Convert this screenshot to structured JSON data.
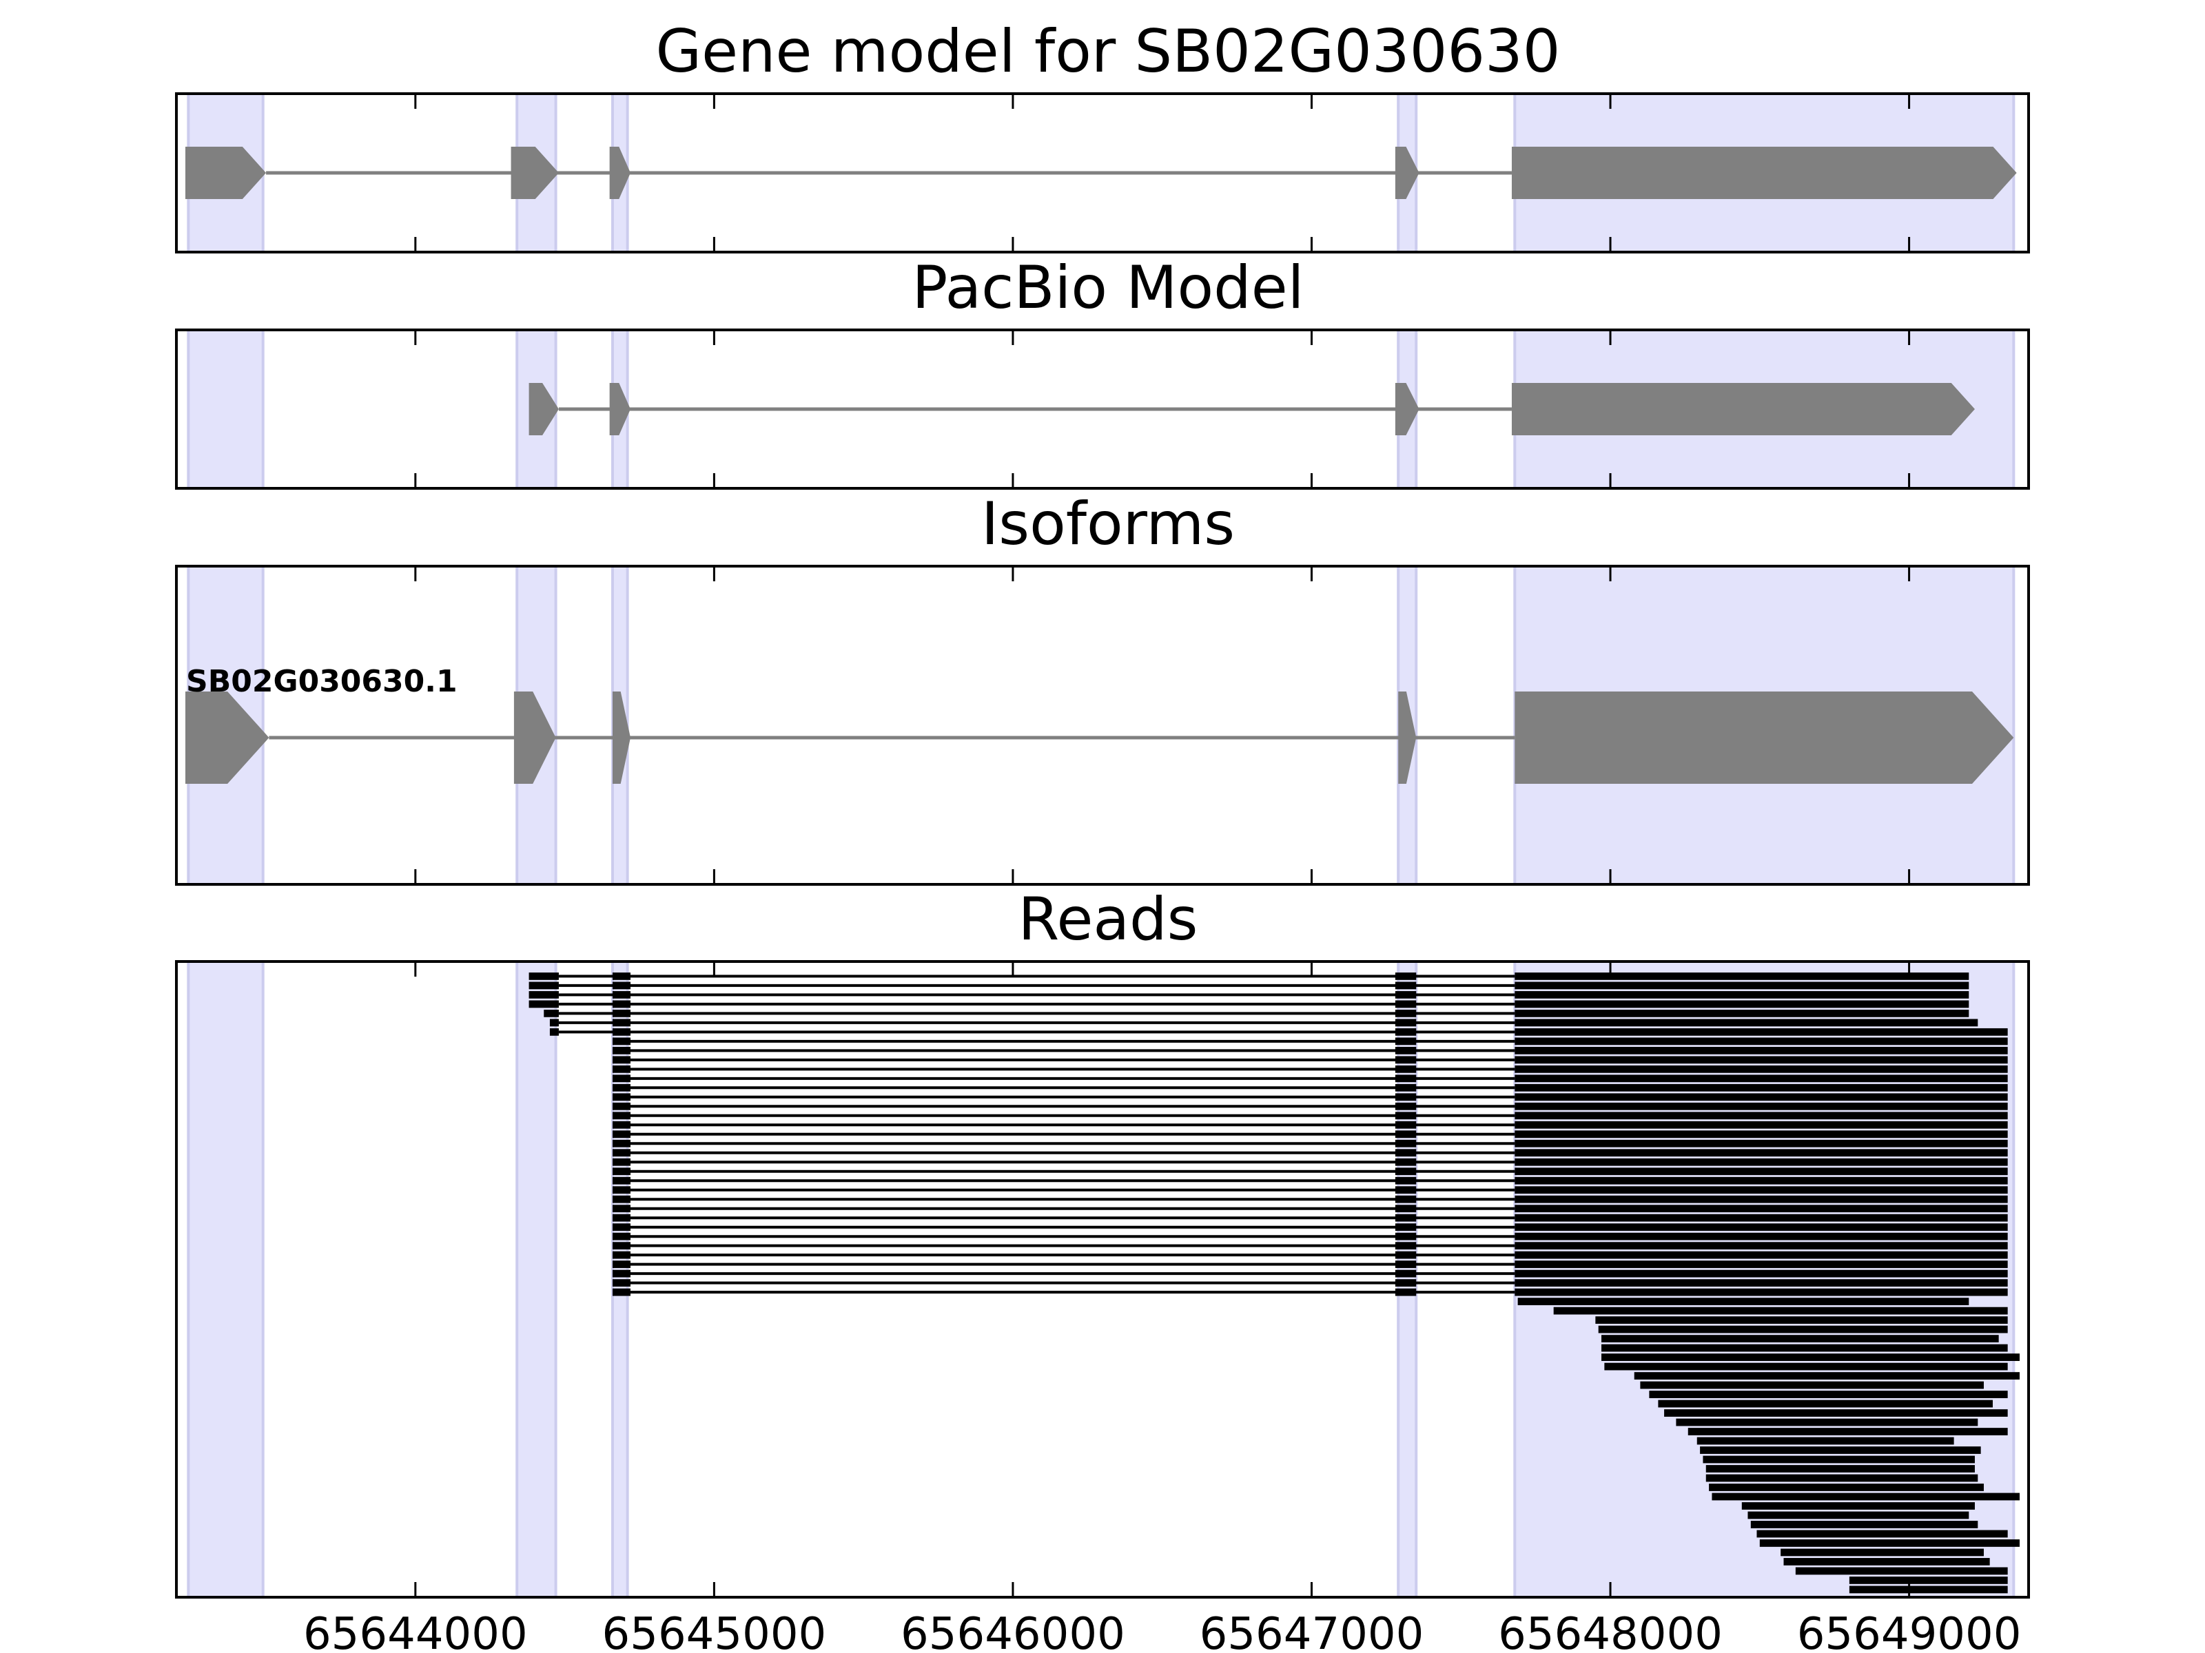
{
  "colors": {
    "exon_band": "#e3e3fb",
    "exon_band_edge": "#ccccee",
    "model_fill": "#808080",
    "intron_line": "#808080",
    "read": "#000000",
    "frame": "#000000"
  },
  "chart_data": {
    "type": "gene-structure",
    "xlim": [
      65643200,
      65649400
    ],
    "xticks": [
      65644000,
      65645000,
      65646000,
      65647000,
      65648000,
      65649000
    ],
    "xtick_labels": [
      "65644000",
      "65645000",
      "65646000",
      "65647000",
      "65648000",
      "65649000"
    ],
    "exon_bands": [
      [
        65643240,
        65643490
      ],
      [
        65644340,
        65644470
      ],
      [
        65644660,
        65644710
      ],
      [
        65647290,
        65647350
      ],
      [
        65647680,
        65649350
      ]
    ],
    "panels": [
      {
        "title": "Gene model for SB02G030630",
        "label": "",
        "exons": [
          [
            65643230,
            65643500
          ],
          [
            65644320,
            65644480
          ],
          [
            65644650,
            65644720
          ],
          [
            65647280,
            65647360
          ],
          [
            65647670,
            65649360
          ]
        ]
      },
      {
        "title": "PacBio Model",
        "label": "",
        "exons": [
          [
            65644380,
            65644480
          ],
          [
            65644650,
            65644720
          ],
          [
            65647280,
            65647360
          ],
          [
            65647670,
            65649220
          ]
        ]
      },
      {
        "title": "Isoforms",
        "label": "SB02G030630.1",
        "exons": [
          [
            65643230,
            65643510
          ],
          [
            65644330,
            65644470
          ],
          [
            65644660,
            65644720
          ],
          [
            65647290,
            65647350
          ],
          [
            65647680,
            65649350
          ]
        ]
      },
      {
        "title": "Reads",
        "label": "",
        "reads": [
          [
            [
              65644380,
              65644480
            ],
            [
              65644660,
              65644720
            ],
            [
              65647280,
              65647350
            ],
            [
              65647680,
              65649200
            ]
          ],
          [
            [
              65644380,
              65644480
            ],
            [
              65644660,
              65644720
            ],
            [
              65647280,
              65647350
            ],
            [
              65647680,
              65649200
            ]
          ],
          [
            [
              65644380,
              65644480
            ],
            [
              65644660,
              65644720
            ],
            [
              65647280,
              65647350
            ],
            [
              65647680,
              65649200
            ]
          ],
          [
            [
              65644380,
              65644480
            ],
            [
              65644660,
              65644720
            ],
            [
              65647280,
              65647350
            ],
            [
              65647680,
              65649200
            ]
          ],
          [
            [
              65644430,
              65644480
            ],
            [
              65644660,
              65644720
            ],
            [
              65647280,
              65647350
            ],
            [
              65647680,
              65649200
            ]
          ],
          [
            [
              65644450,
              65644480
            ],
            [
              65644660,
              65644720
            ],
            [
              65647280,
              65647350
            ],
            [
              65647680,
              65649230
            ]
          ],
          [
            [
              65644450,
              65644480
            ],
            [
              65644660,
              65644720
            ],
            [
              65647280,
              65647350
            ],
            [
              65647680,
              65649330
            ]
          ],
          [
            [
              65644660,
              65644720
            ],
            [
              65647280,
              65647350
            ],
            [
              65647680,
              65649330
            ]
          ],
          [
            [
              65644660,
              65644720
            ],
            [
              65647280,
              65647350
            ],
            [
              65647680,
              65649330
            ]
          ],
          [
            [
              65644660,
              65644720
            ],
            [
              65647280,
              65647350
            ],
            [
              65647680,
              65649330
            ]
          ],
          [
            [
              65644660,
              65644720
            ],
            [
              65647280,
              65647350
            ],
            [
              65647680,
              65649330
            ]
          ],
          [
            [
              65644660,
              65644720
            ],
            [
              65647280,
              65647350
            ],
            [
              65647680,
              65649330
            ]
          ],
          [
            [
              65644660,
              65644720
            ],
            [
              65647280,
              65647350
            ],
            [
              65647680,
              65649330
            ]
          ],
          [
            [
              65644660,
              65644720
            ],
            [
              65647280,
              65647350
            ],
            [
              65647680,
              65649330
            ]
          ],
          [
            [
              65644660,
              65644720
            ],
            [
              65647280,
              65647350
            ],
            [
              65647680,
              65649330
            ]
          ],
          [
            [
              65644660,
              65644720
            ],
            [
              65647280,
              65647350
            ],
            [
              65647680,
              65649330
            ]
          ],
          [
            [
              65644660,
              65644720
            ],
            [
              65647280,
              65647350
            ],
            [
              65647680,
              65649330
            ]
          ],
          [
            [
              65644660,
              65644720
            ],
            [
              65647280,
              65647350
            ],
            [
              65647680,
              65649330
            ]
          ],
          [
            [
              65644660,
              65644720
            ],
            [
              65647280,
              65647350
            ],
            [
              65647680,
              65649330
            ]
          ],
          [
            [
              65644660,
              65644720
            ],
            [
              65647280,
              65647350
            ],
            [
              65647680,
              65649330
            ]
          ],
          [
            [
              65644660,
              65644720
            ],
            [
              65647280,
              65647350
            ],
            [
              65647680,
              65649330
            ]
          ],
          [
            [
              65644660,
              65644720
            ],
            [
              65647280,
              65647350
            ],
            [
              65647680,
              65649330
            ]
          ],
          [
            [
              65644660,
              65644720
            ],
            [
              65647280,
              65647350
            ],
            [
              65647680,
              65649330
            ]
          ],
          [
            [
              65644660,
              65644720
            ],
            [
              65647280,
              65647350
            ],
            [
              65647680,
              65649330
            ]
          ],
          [
            [
              65644660,
              65644720
            ],
            [
              65647280,
              65647350
            ],
            [
              65647680,
              65649330
            ]
          ],
          [
            [
              65644660,
              65644720
            ],
            [
              65647280,
              65647350
            ],
            [
              65647680,
              65649330
            ]
          ],
          [
            [
              65644660,
              65644720
            ],
            [
              65647280,
              65647350
            ],
            [
              65647680,
              65649330
            ]
          ],
          [
            [
              65644660,
              65644720
            ],
            [
              65647280,
              65647350
            ],
            [
              65647680,
              65649330
            ]
          ],
          [
            [
              65644660,
              65644720
            ],
            [
              65647280,
              65647350
            ],
            [
              65647680,
              65649330
            ]
          ],
          [
            [
              65644660,
              65644720
            ],
            [
              65647280,
              65647350
            ],
            [
              65647680,
              65649330
            ]
          ],
          [
            [
              65644660,
              65644720
            ],
            [
              65647280,
              65647350
            ],
            [
              65647680,
              65649330
            ]
          ],
          [
            [
              65644660,
              65644720
            ],
            [
              65647280,
              65647350
            ],
            [
              65647680,
              65649330
            ]
          ],
          [
            [
              65644660,
              65644720
            ],
            [
              65647280,
              65647350
            ],
            [
              65647680,
              65649330
            ]
          ],
          [
            [
              65644660,
              65644720
            ],
            [
              65647280,
              65647350
            ],
            [
              65647680,
              65649330
            ]
          ],
          [
            [
              65644660,
              65644720
            ],
            [
              65647280,
              65647350
            ],
            [
              65647680,
              65649330
            ]
          ],
          [
            [
              65647690,
              65649200
            ]
          ],
          [
            [
              65647810,
              65649330
            ]
          ],
          [
            [
              65647950,
              65649330
            ]
          ],
          [
            [
              65647960,
              65649330
            ]
          ],
          [
            [
              65647970,
              65649300
            ]
          ],
          [
            [
              65647970,
              65649330
            ]
          ],
          [
            [
              65647970,
              65649370
            ]
          ],
          [
            [
              65647980,
              65649330
            ]
          ],
          [
            [
              65648080,
              65649370
            ]
          ],
          [
            [
              65648100,
              65649250
            ]
          ],
          [
            [
              65648130,
              65649330
            ]
          ],
          [
            [
              65648160,
              65649280
            ]
          ],
          [
            [
              65648180,
              65649330
            ]
          ],
          [
            [
              65648220,
              65649230
            ]
          ],
          [
            [
              65648260,
              65649330
            ]
          ],
          [
            [
              65648290,
              65649150
            ]
          ],
          [
            [
              65648300,
              65649240
            ]
          ],
          [
            [
              65648310,
              65649220
            ]
          ],
          [
            [
              65648320,
              65649220
            ]
          ],
          [
            [
              65648320,
              65649230
            ]
          ],
          [
            [
              65648330,
              65649250
            ]
          ],
          [
            [
              65648340,
              65649370
            ]
          ],
          [
            [
              65648440,
              65649220
            ]
          ],
          [
            [
              65648460,
              65649200
            ]
          ],
          [
            [
              65648470,
              65649230
            ]
          ],
          [
            [
              65648490,
              65649330
            ]
          ],
          [
            [
              65648500,
              65649370
            ]
          ],
          [
            [
              65648570,
              65649250
            ]
          ],
          [
            [
              65648580,
              65649270
            ]
          ],
          [
            [
              65648620,
              65649330
            ]
          ],
          [
            [
              65648800,
              65649330
            ]
          ],
          [
            [
              65648800,
              65649330
            ]
          ]
        ]
      }
    ]
  }
}
